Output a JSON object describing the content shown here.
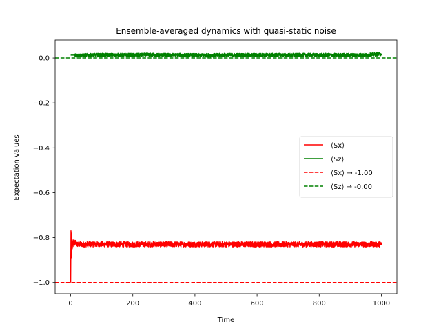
{
  "chart_data": {
    "type": "line",
    "title": "Ensemble-averaged dynamics with quasi-static noise",
    "xlabel": "Time",
    "ylabel": "Expectation values",
    "xlim": [
      -50,
      1050
    ],
    "ylim": [
      -1.05,
      0.08
    ],
    "xticks": [
      0,
      200,
      400,
      600,
      800,
      1000
    ],
    "yticks": [
      0.0,
      -0.2,
      -0.4,
      -0.6,
      -0.8,
      -1.0
    ],
    "xtick_labels": [
      "0",
      "200",
      "400",
      "600",
      "800",
      "1000"
    ],
    "ytick_labels": [
      "0.0",
      "−0.2",
      "−0.4",
      "−0.6",
      "−0.8",
      "−1.0"
    ],
    "grid": false,
    "legend_position": "center-right",
    "series": [
      {
        "name": "⟨Sx⟩",
        "color": "#ff0000",
        "style": "solid",
        "x": [
          0,
          1,
          2,
          3,
          5,
          8,
          10,
          15,
          20,
          50,
          100,
          150,
          200,
          250,
          300,
          350,
          400,
          450,
          500,
          550,
          600,
          650,
          700,
          750,
          800,
          850,
          900,
          950,
          1000
        ],
        "values": [
          -1.0,
          -0.77,
          -0.89,
          -0.78,
          -0.85,
          -0.81,
          -0.84,
          -0.82,
          -0.83,
          -0.83,
          -0.83,
          -0.83,
          -0.83,
          -0.83,
          -0.83,
          -0.83,
          -0.83,
          -0.83,
          -0.83,
          -0.83,
          -0.83,
          -0.83,
          -0.83,
          -0.83,
          -0.83,
          -0.83,
          -0.83,
          -0.83,
          -0.83
        ],
        "noise_amplitude": 0.012
      },
      {
        "name": "⟨Sz⟩",
        "color": "#008000",
        "style": "solid",
        "x": [
          0,
          50,
          100,
          150,
          200,
          250,
          300,
          350,
          400,
          450,
          500,
          550,
          600,
          650,
          700,
          750,
          800,
          850,
          900,
          950,
          1000
        ],
        "values": [
          0.013,
          0.012,
          0.013,
          0.013,
          0.013,
          0.014,
          0.013,
          0.013,
          0.012,
          0.012,
          0.013,
          0.013,
          0.013,
          0.013,
          0.013,
          0.013,
          0.013,
          0.013,
          0.013,
          0.013,
          0.018
        ],
        "noise_amplitude": 0.008
      },
      {
        "name": "⟨Sx⟩ → -1.00",
        "color": "#ff0000",
        "style": "dashed",
        "y": -1.0
      },
      {
        "name": "⟨Sz⟩ → -0.00",
        "color": "#008000",
        "style": "dashed",
        "y": 0.0
      }
    ]
  }
}
